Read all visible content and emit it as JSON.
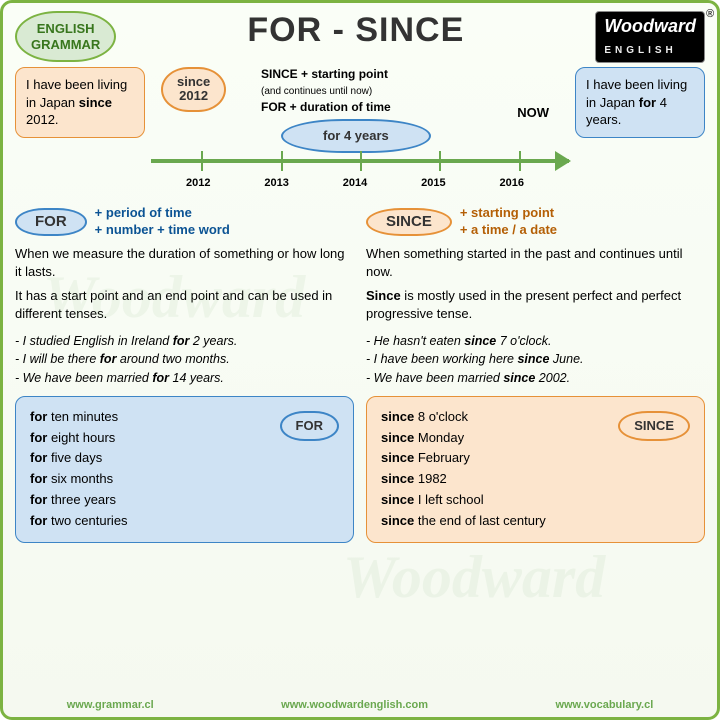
{
  "badge": {
    "line1": "ENGLISH",
    "line2": "GRAMMAR"
  },
  "title": "FOR - SINCE",
  "logo": {
    "name": "Woodward",
    "sub": "ENGLISH"
  },
  "timeline": {
    "left_box": {
      "pre": "I have been living in Japan ",
      "bold": "since",
      "post": " 2012."
    },
    "right_box": {
      "pre": "I have been living in Japan ",
      "bold": "for",
      "post": " 4 years."
    },
    "since_pill": {
      "l1": "since",
      "l2": "2012"
    },
    "rule1": {
      "bold": "SINCE + starting point",
      "sub": "(and continues until now)"
    },
    "rule2": "FOR + duration of time",
    "now": "NOW",
    "for_pill": {
      "bold": "for",
      "rest": " 4 years"
    },
    "years": [
      "2012",
      "2013",
      "2014",
      "2015",
      "2016"
    ]
  },
  "for": {
    "pill": "FOR",
    "desc1": "+ period of time",
    "desc2": "+ number + time word",
    "body1": "When we measure the duration of something or how long it lasts.",
    "body2": "It has a start point and an end point and can be used in different tenses.",
    "ex": [
      {
        "pre": "- I studied English in Ireland ",
        "b": "for",
        "post": " 2 years."
      },
      {
        "pre": "- I will be there ",
        "b": "for",
        "post": " around two months."
      },
      {
        "pre": "- We have been married ",
        "b": "for",
        "post": " 14 years."
      }
    ],
    "list": [
      "ten minutes",
      "eight hours",
      "five days",
      "six months",
      "three years",
      "two centuries"
    ],
    "kw": "for",
    "tag": "FOR"
  },
  "since": {
    "pill": "SINCE",
    "desc1": "+ starting point",
    "desc2": "+ a time / a date",
    "body1": "When something started in the past and continues until now.",
    "body2a": "Since",
    "body2b": " is mostly used in the present perfect and perfect progressive tense.",
    "ex": [
      {
        "pre": "- He hasn't eaten ",
        "b": "since",
        "post": " 7 o'clock."
      },
      {
        "pre": "- I have been working here ",
        "b": "since",
        "post": " June."
      },
      {
        "pre": "- We have been married ",
        "b": "since",
        "post": " 2002."
      }
    ],
    "list": [
      "8 o'clock",
      "Monday",
      "February",
      "1982",
      "I left school",
      "the end of last century"
    ],
    "kw": "since",
    "tag": "SINCE"
  },
  "footer": [
    "www.grammar.cl",
    "www.woodwardenglish.com",
    "www.vocabulary.cl"
  ],
  "colors": {
    "green": "#7cb342",
    "orange": "#e69138",
    "blue": "#3d85c6"
  }
}
